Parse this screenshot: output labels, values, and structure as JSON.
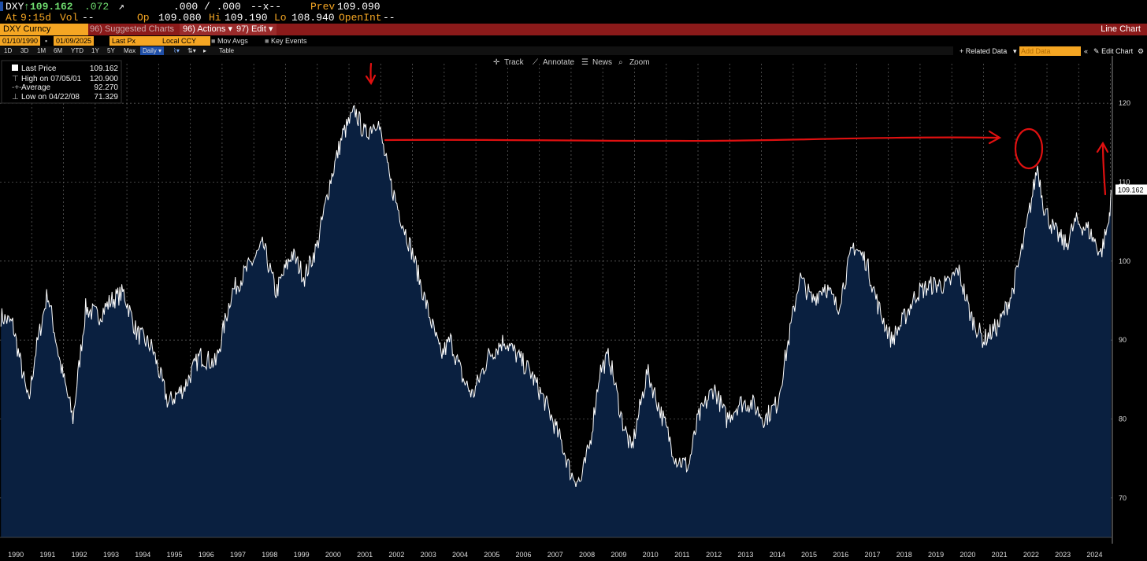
{
  "quote": {
    "ticker": "DXY",
    "price": "109.162",
    "change": ".072",
    "bid_ask": ".000 / .000",
    "size": "--x--",
    "prev_label": "Prev",
    "prev_value": "109.090",
    "at_label": "At",
    "time": "9:15d",
    "vol_label": "Vol",
    "vol_value": "--",
    "op_label": "Op",
    "op_value": "109.080",
    "hi_label": "Hi",
    "hi_value": "109.190",
    "lo_label": "Lo",
    "lo_value": "108.940",
    "openint_label": "OpenInt",
    "openint_value": "--"
  },
  "toolbar": {
    "security": "DXY Curncy",
    "suggested_charts": "96) Suggested Charts",
    "actions": "96) Actions",
    "edit": "97) Edit",
    "chart_type": "Line Chart"
  },
  "controls": {
    "start_date": "01/10/1990",
    "end_date": "01/09/2025",
    "field": "Last Px",
    "currency": "Local CCY",
    "mov_avgs": "Mov Avgs",
    "key_events": "Key Events",
    "related_data": "+ Related Data",
    "add_data_placeholder": "Add Data",
    "edit_chart": "Edit Chart"
  },
  "periods": {
    "items": [
      "1D",
      "3D",
      "1M",
      "6M",
      "YTD",
      "1Y",
      "5Y",
      "Max"
    ],
    "frequency": "Daily",
    "table": "Table"
  },
  "chart_tools": {
    "track": "Track",
    "annotate": "Annotate",
    "news": "News",
    "zoom": "Zoom"
  },
  "legend": {
    "last_price_label": "Last Price",
    "last_price_value": "109.162",
    "high_label": "High on 07/05/01",
    "high_value": "120.900",
    "average_label": "Average",
    "average_value": "92.270",
    "low_label": "Low on 04/22/08",
    "low_value": "71.329"
  },
  "colors": {
    "fill": "#0a2040",
    "line": "#ffffff",
    "annotation": "#e01010",
    "accent": "#f5a623",
    "bar": "#8b1a1a"
  },
  "chart_data": {
    "type": "area",
    "y_ticks": [
      70,
      80,
      90,
      100,
      110,
      120
    ],
    "ylim": [
      65,
      125
    ],
    "x_labels": [
      "1990",
      "1991",
      "1992",
      "1993",
      "1994",
      "1995",
      "1996",
      "1997",
      "1998",
      "1999",
      "2000",
      "2001",
      "2002",
      "2003",
      "2004",
      "2005",
      "2006",
      "2007",
      "2008",
      "2009",
      "2010",
      "2011",
      "2012",
      "2013",
      "2014",
      "2015",
      "2016",
      "2017",
      "2018",
      "2019",
      "2020",
      "2021",
      "2022",
      "2023",
      "2024"
    ],
    "last_value_label": "109.162",
    "series": [
      {
        "x": [
          1990.03,
          1990.4,
          1990.9,
          1991.1,
          1991.5,
          1991.9,
          1992.3,
          1992.7,
          1993.1,
          1993.5,
          1993.9,
          1994.3,
          1994.8,
          1995.3,
          1995.8,
          1996.3,
          1996.8,
          1997.3,
          1997.8,
          1998.3,
          1998.7,
          1999.2,
          1999.6,
          2000.0,
          2000.4,
          2000.8,
          2001.2,
          2001.5,
          2001.9,
          2002.3,
          2002.6,
          2003.0,
          2003.4,
          2003.9,
          2004.2,
          2004.6,
          2004.9,
          2005.4,
          2005.9,
          2006.3,
          2006.7,
          2007.2,
          2007.7,
          2008.0,
          2008.3,
          2008.6,
          2008.9,
          2009.2,
          2009.6,
          2009.9,
          2010.4,
          2010.9,
          2011.3,
          2011.7,
          2012.0,
          2012.5,
          2012.9,
          2013.3,
          2013.7,
          2014.1,
          2014.5,
          2014.9,
          2015.2,
          2015.6,
          2016.0,
          2016.4,
          2016.9,
          2017.3,
          2017.7,
          2018.1,
          2018.4,
          2018.9,
          2019.4,
          2019.9,
          2020.2,
          2020.6,
          2021.0,
          2021.5,
          2021.9,
          2022.3,
          2022.7,
          2022.9,
          2023.2,
          2023.6,
          2023.9,
          2024.3,
          2024.7,
          2024.95,
          2025.02
        ],
        "values": [
          93,
          92,
          82,
          88,
          96,
          87,
          80,
          94,
          93,
          95,
          96,
          91,
          89,
          82,
          84,
          88,
          87,
          96,
          99,
          102,
          96,
          101,
          98,
          102,
          110,
          116,
          119,
          116,
          118,
          110,
          106,
          101,
          95,
          88,
          90,
          85,
          83,
          88,
          90,
          88,
          86,
          82,
          77,
          73,
          72,
          77,
          86,
          88,
          80,
          76,
          86,
          80,
          75,
          74,
          80,
          84,
          80,
          82,
          82,
          80,
          82,
          91,
          98,
          95,
          97,
          94,
          102,
          100,
          94,
          90,
          92,
          96,
          97,
          97,
          99,
          93,
          90,
          92,
          96,
          103,
          112,
          107,
          104,
          102,
          105,
          104,
          101,
          105,
          109
        ]
      }
    ]
  }
}
